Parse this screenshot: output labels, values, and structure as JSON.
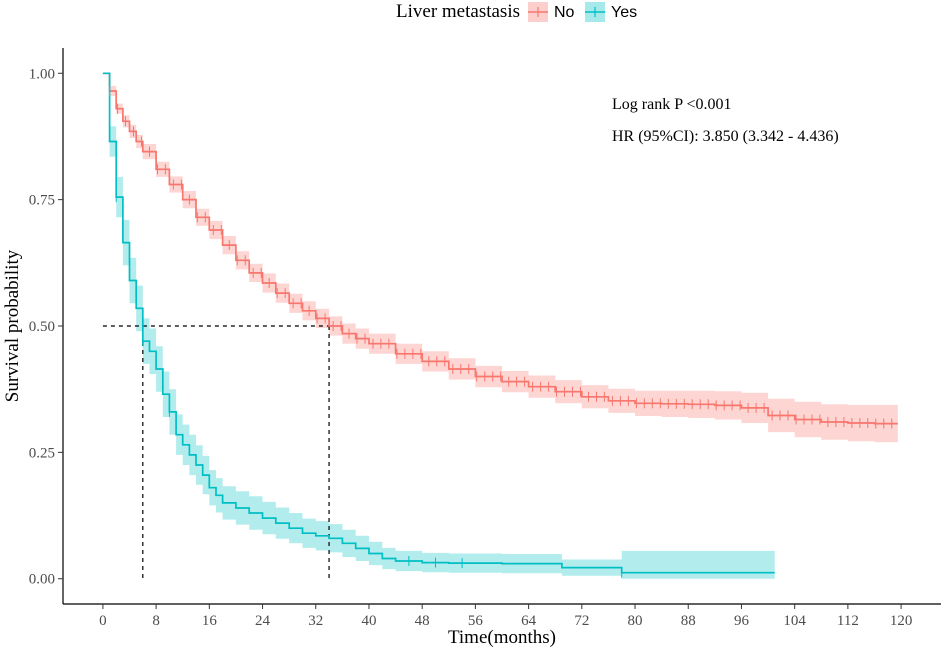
{
  "chart_data": {
    "type": "line",
    "subtype": "kaplan-meier survival curve with 95% confidence bands",
    "xlabel": "Time(months)",
    "ylabel": "Survival probability",
    "xlim": [
      -6,
      126
    ],
    "ylim": [
      -0.05,
      1.05
    ],
    "xticks": [
      0,
      8,
      16,
      24,
      32,
      40,
      48,
      56,
      64,
      72,
      80,
      88,
      96,
      104,
      112,
      120
    ],
    "yticks": [
      0.0,
      0.25,
      0.5,
      0.75,
      1.0
    ],
    "ytick_labels": [
      "0.00",
      "0.25",
      "0.50",
      "0.75",
      "1.00"
    ],
    "grid": false,
    "legend": {
      "title": "Liver metastasis",
      "position": "top",
      "labels": [
        "No",
        "Yes"
      ]
    },
    "annotations": {
      "logrank": "Log rank P <0.001",
      "hr": "HR (95%CI): 3.850 (3.342 - 4.436)"
    },
    "median_survival": {
      "level": 0.5,
      "No": 34,
      "Yes": 6
    },
    "series": [
      {
        "name": "No",
        "color": "#F8766D",
        "band_color": "#F8766D",
        "x": [
          0,
          1,
          2,
          3,
          4,
          5,
          6,
          8,
          10,
          12,
          14,
          16,
          18,
          20,
          22,
          24,
          26,
          28,
          30,
          32,
          34,
          36,
          38,
          40,
          44,
          48,
          52,
          56,
          60,
          64,
          68,
          72,
          76,
          80,
          84,
          88,
          92,
          96,
          100,
          104,
          108,
          112,
          116,
          119.5
        ],
        "y": [
          1.0,
          0.965,
          0.93,
          0.905,
          0.885,
          0.865,
          0.845,
          0.81,
          0.78,
          0.75,
          0.715,
          0.69,
          0.66,
          0.63,
          0.605,
          0.585,
          0.565,
          0.545,
          0.53,
          0.515,
          0.5,
          0.485,
          0.475,
          0.465,
          0.445,
          0.43,
          0.415,
          0.4,
          0.39,
          0.38,
          0.37,
          0.36,
          0.352,
          0.347,
          0.346,
          0.345,
          0.343,
          0.338,
          0.323,
          0.315,
          0.31,
          0.308,
          0.307,
          0.307
        ],
        "lower": [
          1.0,
          0.955,
          0.92,
          0.893,
          0.872,
          0.852,
          0.83,
          0.795,
          0.764,
          0.733,
          0.698,
          0.672,
          0.642,
          0.612,
          0.587,
          0.566,
          0.546,
          0.526,
          0.511,
          0.496,
          0.481,
          0.465,
          0.455,
          0.445,
          0.425,
          0.41,
          0.394,
          0.379,
          0.369,
          0.358,
          0.347,
          0.337,
          0.328,
          0.322,
          0.32,
          0.318,
          0.315,
          0.308,
          0.29,
          0.28,
          0.275,
          0.272,
          0.27,
          0.27
        ],
        "upper": [
          1.0,
          0.975,
          0.94,
          0.917,
          0.898,
          0.878,
          0.86,
          0.825,
          0.796,
          0.767,
          0.732,
          0.708,
          0.678,
          0.648,
          0.623,
          0.604,
          0.584,
          0.564,
          0.549,
          0.534,
          0.519,
          0.505,
          0.495,
          0.485,
          0.465,
          0.45,
          0.436,
          0.421,
          0.411,
          0.402,
          0.393,
          0.383,
          0.376,
          0.372,
          0.372,
          0.372,
          0.371,
          0.368,
          0.356,
          0.35,
          0.345,
          0.344,
          0.344,
          0.344
        ]
      },
      {
        "name": "Yes",
        "color": "#00BFC4",
        "band_color": "#00BFC4",
        "x": [
          0,
          1,
          2,
          3,
          4,
          5,
          6,
          7,
          8,
          9,
          10,
          11,
          12,
          13,
          14,
          15,
          16,
          17,
          18,
          20,
          22,
          24,
          26,
          28,
          30,
          32,
          34,
          36,
          38,
          40,
          42,
          44,
          48,
          52,
          56,
          60,
          64,
          69,
          72,
          76,
          78,
          84,
          90,
          96,
          101
        ],
        "y": [
          1.0,
          0.865,
          0.755,
          0.665,
          0.59,
          0.535,
          0.47,
          0.45,
          0.415,
          0.365,
          0.33,
          0.285,
          0.265,
          0.245,
          0.225,
          0.205,
          0.18,
          0.165,
          0.15,
          0.14,
          0.13,
          0.12,
          0.11,
          0.1,
          0.09,
          0.085,
          0.08,
          0.07,
          0.06,
          0.05,
          0.04,
          0.035,
          0.032,
          0.031,
          0.031,
          0.03,
          0.03,
          0.022,
          0.022,
          0.022,
          0.012,
          0.012,
          0.012,
          0.012,
          0.012
        ],
        "lower": [
          1.0,
          0.835,
          0.715,
          0.62,
          0.545,
          0.49,
          0.425,
          0.405,
          0.37,
          0.32,
          0.285,
          0.245,
          0.225,
          0.205,
          0.186,
          0.167,
          0.145,
          0.131,
          0.117,
          0.107,
          0.097,
          0.088,
          0.079,
          0.07,
          0.061,
          0.056,
          0.052,
          0.043,
          0.035,
          0.027,
          0.019,
          0.015,
          0.013,
          0.012,
          0.012,
          0.011,
          0.011,
          0.006,
          0.006,
          0.006,
          0.0,
          0.0,
          0.0,
          0.0,
          0.0
        ],
        "upper": [
          1.0,
          0.895,
          0.795,
          0.71,
          0.635,
          0.58,
          0.515,
          0.495,
          0.46,
          0.41,
          0.375,
          0.325,
          0.305,
          0.285,
          0.264,
          0.243,
          0.215,
          0.199,
          0.183,
          0.173,
          0.163,
          0.152,
          0.141,
          0.13,
          0.119,
          0.114,
          0.108,
          0.097,
          0.085,
          0.073,
          0.061,
          0.055,
          0.051,
          0.05,
          0.05,
          0.049,
          0.049,
          0.038,
          0.038,
          0.038,
          0.055,
          0.055,
          0.055,
          0.055,
          0.055
        ]
      }
    ]
  }
}
